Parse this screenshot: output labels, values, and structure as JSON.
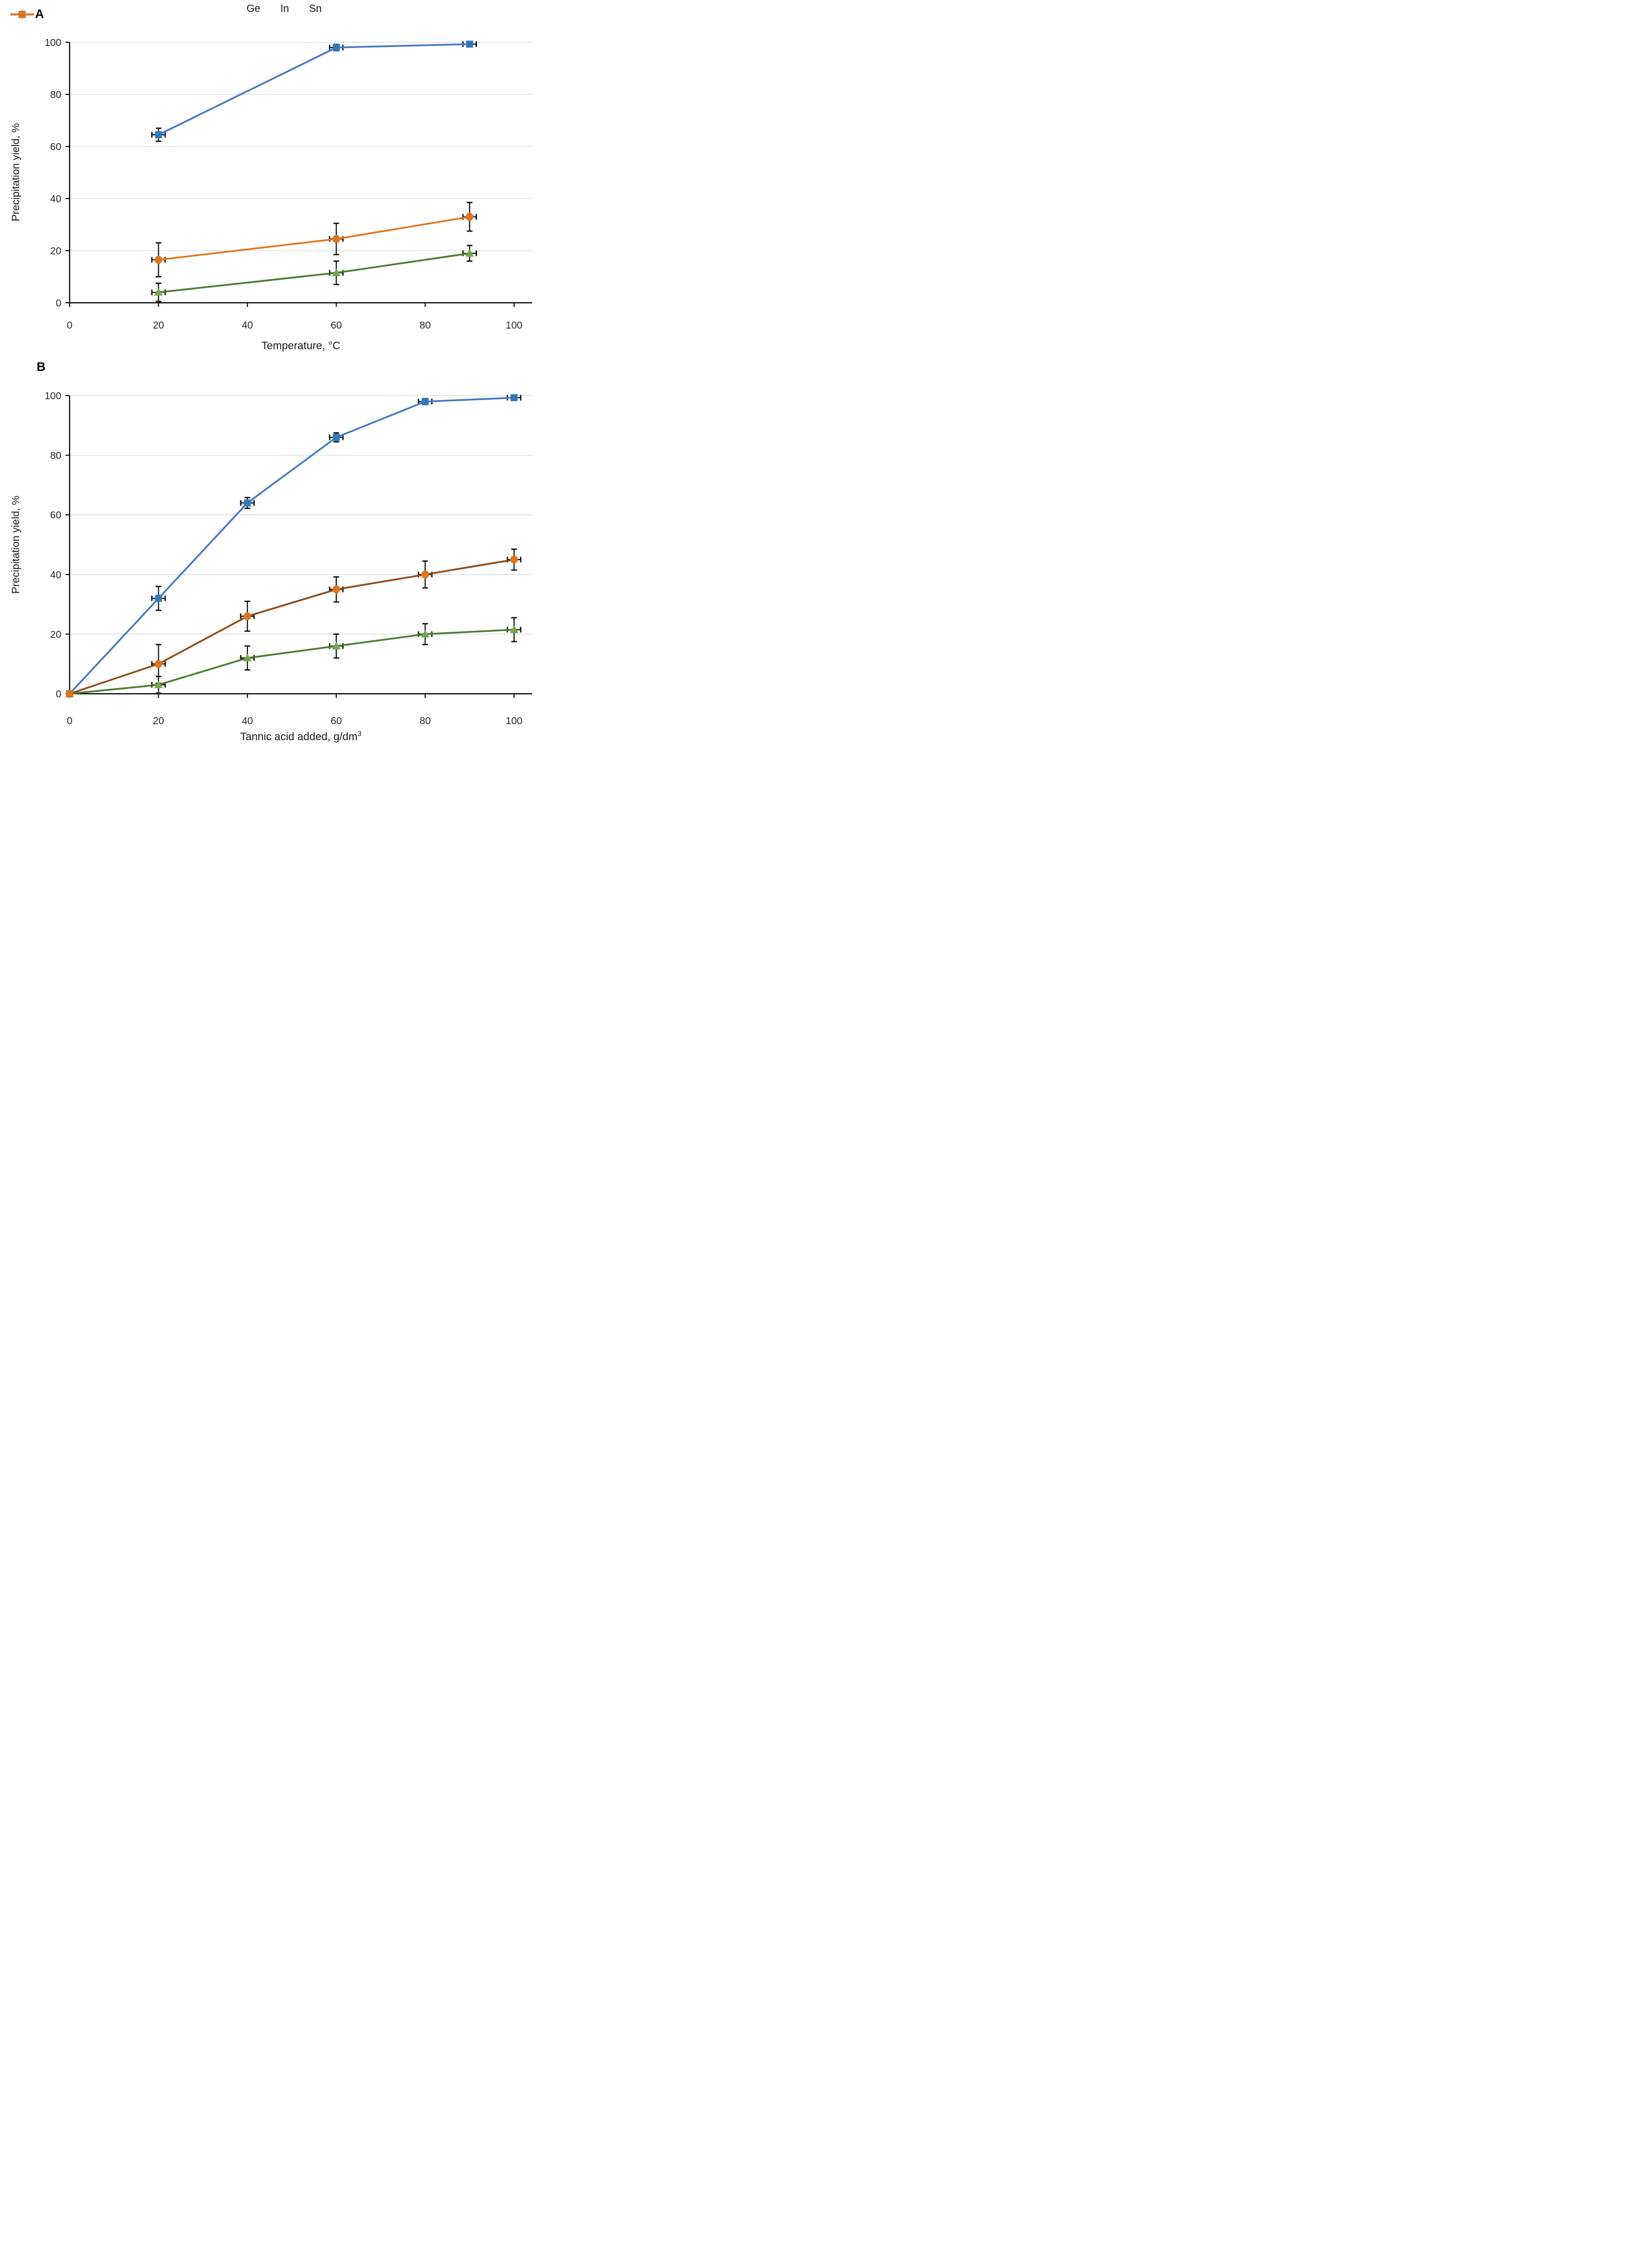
{
  "colors": {
    "axis": "#000000",
    "grid": "#d9d9d9",
    "error_bar": "#111111",
    "tick_text": "#262626"
  },
  "legend": {
    "items": [
      {
        "label": "Ge"
      },
      {
        "label": "In"
      },
      {
        "label": "Sn"
      }
    ]
  },
  "chart_data": [
    {
      "type": "line",
      "panel_label": "A",
      "xlabel": "Temperature, °C",
      "xlabel_superscript": "",
      "ylabel": "Precipitation yield, %",
      "xlim": [
        0,
        100
      ],
      "ylim": [
        0,
        100
      ],
      "x_ticks": [
        0,
        20,
        40,
        60,
        80,
        100
      ],
      "y_ticks": [
        0,
        20,
        40,
        60,
        80,
        100
      ],
      "grid": "horizontal",
      "legend_position": "top-center",
      "series": [
        {
          "name": "Ge",
          "marker": "square",
          "marker_color": "#2f79b9",
          "line_color": "#4577c3",
          "x": [
            20,
            60,
            90
          ],
          "y": [
            64.5,
            98,
            99.3
          ],
          "y_err": [
            2.5,
            1.2,
            1
          ],
          "x_err": [
            1.5,
            1.5,
            1.5
          ]
        },
        {
          "name": "In",
          "marker": "triangle",
          "marker_color": "#6faa4b",
          "line_color": "#4a7b2e",
          "x": [
            20,
            60,
            90
          ],
          "y": [
            4,
            11.5,
            19
          ],
          "y_err": [
            3.5,
            4.5,
            3
          ],
          "x_err": [
            1.5,
            1.5,
            1.5
          ]
        },
        {
          "name": "Sn",
          "marker": "circle",
          "marker_color": "#e0741d",
          "line_color": "#e0751f",
          "x": [
            20,
            60,
            90
          ],
          "y": [
            16.5,
            24.5,
            33
          ],
          "y_err": [
            6.5,
            6,
            5.5
          ],
          "x_err": [
            1.5,
            1.5,
            1.5
          ]
        }
      ]
    },
    {
      "type": "line",
      "panel_label": "B",
      "xlabel": "Tannic acid added, g/dm",
      "xlabel_superscript": "3",
      "ylabel": "Precipitation yield, %",
      "xlim": [
        0,
        100
      ],
      "ylim": [
        0,
        100
      ],
      "x_ticks": [
        0,
        20,
        40,
        60,
        80,
        100
      ],
      "y_ticks": [
        0,
        20,
        40,
        60,
        80,
        100
      ],
      "grid": "horizontal",
      "legend_position": "top-center",
      "series": [
        {
          "name": "Ge",
          "marker": "square",
          "marker_color": "#2f79b9",
          "line_color": "#4577c3",
          "x": [
            0,
            20,
            40,
            60,
            80,
            100
          ],
          "y": [
            0,
            32,
            64,
            86,
            98,
            99.3
          ],
          "y_err": [
            0,
            4,
            1.8,
            1.5,
            1,
            0.8
          ],
          "x_err": [
            0,
            1.5,
            1.5,
            1.5,
            1.5,
            1.5
          ]
        },
        {
          "name": "In",
          "marker": "triangle",
          "marker_color": "#6faa4b",
          "line_color": "#4a7b2e",
          "x": [
            0,
            20,
            40,
            60,
            80,
            100
          ],
          "y": [
            0,
            3,
            12,
            16,
            20,
            21.5
          ],
          "y_err": [
            0,
            2.8,
            4,
            4,
            3.5,
            4
          ],
          "x_err": [
            0,
            1.5,
            1.5,
            1.5,
            1.5,
            1.5
          ]
        },
        {
          "name": "Sn",
          "marker": "circle",
          "marker_color": "#e0741d",
          "line_color": "#8f4a15",
          "x": [
            0,
            20,
            40,
            60,
            80,
            100
          ],
          "y": [
            0,
            10,
            26,
            35,
            40,
            45
          ],
          "y_err": [
            0,
            6.5,
            5,
            4.2,
            4.5,
            3.5
          ],
          "x_err": [
            0,
            1.5,
            1.5,
            1.5,
            1.5,
            1.5
          ]
        }
      ]
    }
  ]
}
